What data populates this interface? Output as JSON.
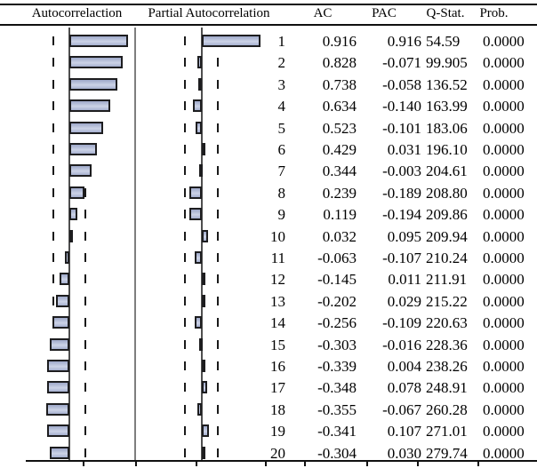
{
  "header": {
    "autocorrelation": "Autocorrelaction",
    "partial_autocorrelation": "Partial Autocorrelation",
    "ac": "AC",
    "pac": "PAC",
    "q_stat": "Q-Stat.",
    "prob": "Prob."
  },
  "table": {
    "rows": [
      [
        "1",
        "0.916",
        "0.916",
        "54.59",
        "0.0000"
      ],
      [
        "2",
        "0.828",
        "-0.071",
        "99.905",
        "0.0000"
      ],
      [
        "3",
        "0.738",
        "-0.058",
        "136.52",
        "0.0000"
      ],
      [
        "4",
        "0.634",
        "-0.140",
        "163.99",
        "0.0000"
      ],
      [
        "5",
        "0.523",
        "-0.101",
        "183.06",
        "0.0000"
      ],
      [
        "6",
        "0.429",
        "0.031",
        "196.10",
        "0.0000"
      ],
      [
        "7",
        "0.344",
        "-0.003",
        "204.61",
        "0.0000"
      ],
      [
        "8",
        "0.239",
        "-0.189",
        "208.80",
        "0.0000"
      ],
      [
        "9",
        "0.119",
        "-0.194",
        "209.86",
        "0.0000"
      ],
      [
        "10",
        "0.032",
        "0.095",
        "209.94",
        "0.0000"
      ],
      [
        "11",
        "-0.063",
        "-0.107",
        "210.24",
        "0.0000"
      ],
      [
        "12",
        "-0.145",
        "0.011",
        "211.91",
        "0.0000"
      ],
      [
        "13",
        "-0.202",
        "0.029",
        "215.22",
        "0.0000"
      ],
      [
        "14",
        "-0.256",
        "-0.109",
        "220.63",
        "0.0000"
      ],
      [
        "15",
        "-0.303",
        "-0.016",
        "228.36",
        "0.0000"
      ],
      [
        "16",
        "-0.339",
        "0.004",
        "238.26",
        "0.0000"
      ],
      [
        "17",
        "-0.348",
        "0.078",
        "248.91",
        "0.0000"
      ],
      [
        "18",
        "-0.355",
        "-0.067",
        "260.28",
        "0.0000"
      ],
      [
        "19",
        "-0.341",
        "0.107",
        "271.01",
        "0.0000"
      ],
      [
        "20",
        "-0.304",
        "0.030",
        "279.74",
        "0.0000"
      ]
    ]
  },
  "chart_data": {
    "type": "bar",
    "orientation": "horizontal",
    "categories": [
      1,
      2,
      3,
      4,
      5,
      6,
      7,
      8,
      9,
      10,
      11,
      12,
      13,
      14,
      15,
      16,
      17,
      18,
      19,
      20
    ],
    "series": [
      {
        "name": "Autocorrelaction",
        "values": [
          0.916,
          0.828,
          0.738,
          0.634,
          0.523,
          0.429,
          0.344,
          0.239,
          0.119,
          0.032,
          -0.063,
          -0.145,
          -0.202,
          -0.256,
          -0.303,
          -0.339,
          -0.348,
          -0.355,
          -0.341,
          -0.304
        ]
      },
      {
        "name": "Partial Autocorrelation",
        "values": [
          0.916,
          -0.071,
          -0.058,
          -0.14,
          -0.101,
          0.031,
          -0.003,
          -0.189,
          -0.194,
          0.095,
          -0.107,
          0.011,
          0.029,
          -0.109,
          -0.016,
          0.004,
          0.078,
          -0.067,
          0.107,
          0.03
        ]
      }
    ],
    "zero_line": true,
    "confidence_bounds": [
      -0.25,
      0.25
    ],
    "value_range": [
      -0.5,
      1.05
    ],
    "grid": false,
    "legend_position": "none"
  },
  "colors": {
    "background": "#ffffff",
    "text": "#000000",
    "rule": "#101010",
    "zero_line": "#4f4f4f",
    "divider": "#7e7e7e",
    "dash": "#1a1a1a",
    "bar_fill": "#b4bdda",
    "bar_border": "#1d1d1f"
  }
}
